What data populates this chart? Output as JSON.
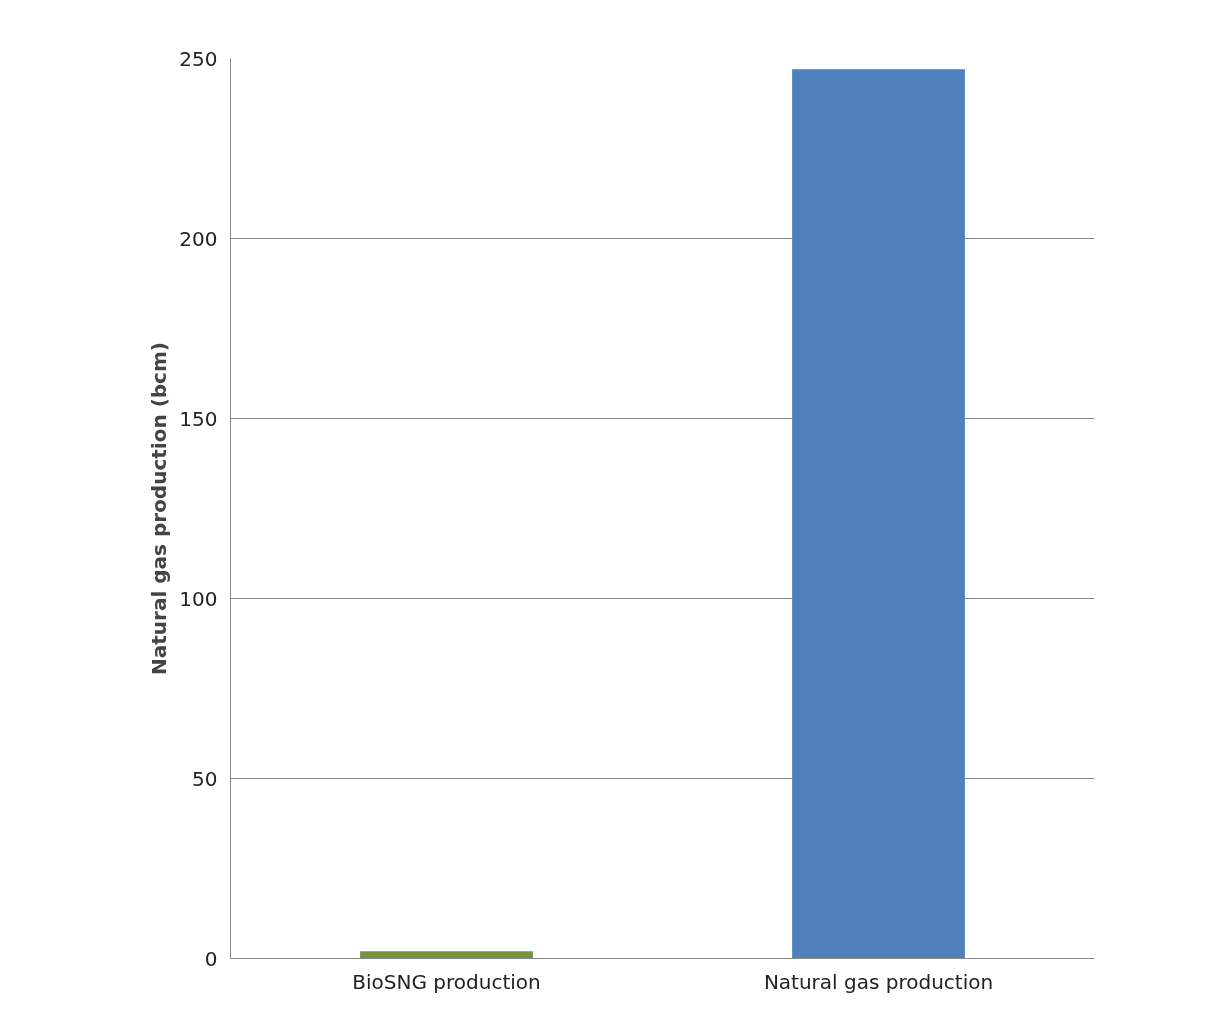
{
  "chart_data": {
    "type": "bar",
    "ylabel": "Natural gas production (bcm)",
    "categories": [
      "BioSNG production",
      "Natural gas production"
    ],
    "values": [
      2,
      247
    ],
    "colors": [
      "#77933c",
      "#4f81bd"
    ],
    "ylim": [
      0,
      250
    ],
    "yticks": [
      0,
      50,
      100,
      150,
      200,
      250
    ],
    "grid": "y"
  }
}
